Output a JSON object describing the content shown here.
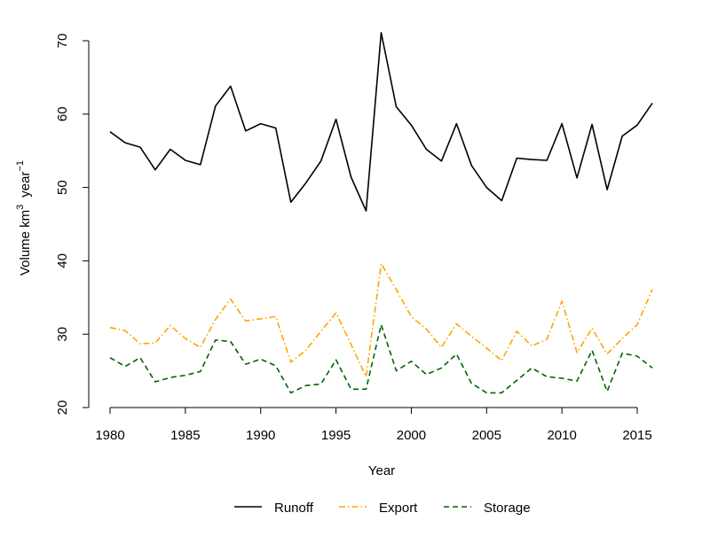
{
  "chart_data": {
    "type": "line",
    "title": "",
    "xlabel": "Year",
    "ylabel": "Volume  km",
    "ylabel_sup": "3",
    "ylabel_unit": "year",
    "ylabel_unit_sup": "−1",
    "xlim": [
      1980,
      2016
    ],
    "ylim": [
      20,
      70
    ],
    "grid": false,
    "legend_position": "bottom",
    "x_ticks": [
      "1980",
      "1985",
      "1990",
      "1995",
      "2000",
      "2005",
      "2010",
      "2015"
    ],
    "y_ticks": [
      "20",
      "30",
      "40",
      "50",
      "60",
      "70"
    ],
    "x": [
      1980,
      1981,
      1982,
      1983,
      1984,
      1985,
      1986,
      1987,
      1988,
      1989,
      1990,
      1991,
      1992,
      1993,
      1994,
      1995,
      1996,
      1997,
      1998,
      1999,
      2000,
      2001,
      2002,
      2003,
      2004,
      2005,
      2006,
      2007,
      2008,
      2009,
      2010,
      2011,
      2012,
      2013,
      2014,
      2015,
      2016
    ],
    "series": [
      {
        "name": "Runoff",
        "color": "#000000",
        "dash": "solid",
        "values": [
          57.6,
          56.1,
          55.5,
          52.4,
          55.2,
          53.7,
          53.1,
          61.1,
          63.8,
          57.7,
          58.7,
          58.1,
          48.0,
          50.6,
          53.6,
          59.3,
          51.4,
          46.8,
          71.1,
          61.0,
          58.5,
          55.2,
          53.6,
          58.7,
          53.0,
          50.0,
          48.2,
          54.0,
          53.8,
          53.7,
          58.7,
          51.3,
          58.6,
          49.7,
          57.0,
          58.5,
          61.5
        ]
      },
      {
        "name": "Export",
        "color": "#ffa500",
        "dash": "dashdot",
        "values": [
          30.9,
          30.5,
          28.7,
          28.8,
          31.2,
          29.4,
          28.2,
          32.0,
          34.8,
          31.8,
          32.1,
          32.4,
          26.2,
          27.8,
          30.4,
          32.9,
          28.6,
          24.2,
          39.6,
          36.1,
          32.4,
          30.7,
          28.2,
          31.4,
          29.7,
          28.1,
          26.4,
          30.4,
          28.4,
          29.3,
          34.5,
          27.5,
          30.8,
          27.3,
          29.4,
          31.3,
          36.1
        ]
      },
      {
        "name": "Storage",
        "color": "#006400",
        "dash": "dashed",
        "values": [
          26.8,
          25.6,
          26.8,
          23.5,
          24.1,
          24.4,
          24.9,
          29.2,
          29.0,
          25.9,
          26.6,
          25.7,
          22.0,
          23.0,
          23.2,
          26.5,
          22.5,
          22.5,
          31.3,
          25.0,
          26.3,
          24.5,
          25.4,
          27.3,
          23.3,
          22.0,
          22.0,
          23.7,
          25.4,
          24.2,
          24.0,
          23.6,
          27.8,
          22.2,
          27.4,
          27.0,
          25.4
        ]
      }
    ]
  }
}
